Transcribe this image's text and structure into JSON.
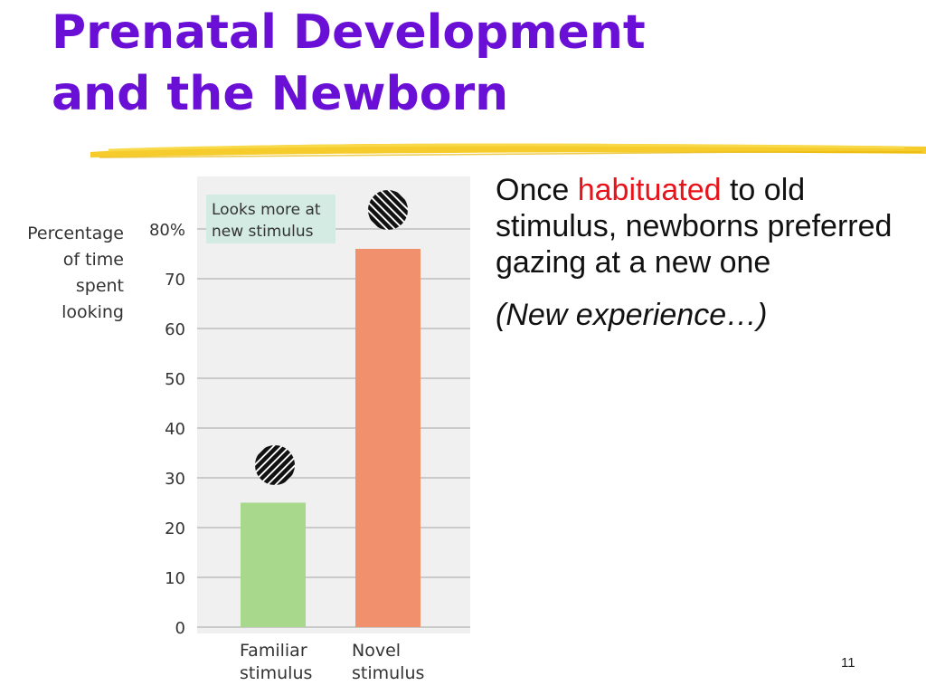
{
  "slide": {
    "title_line1": "Prenatal Development",
    "title_line2": "and the Newborn",
    "text_before": "Once ",
    "text_highlight": "habituated",
    "text_after": " to old stimulus, newborns preferred gazing at a new one",
    "note": "(New experience…)",
    "page_number": "11"
  },
  "colors": {
    "title": "#6a0fd6",
    "highlight": "#e8141b",
    "familiar_bar": "#a8d88b",
    "novel_bar": "#f0906c",
    "annotation_box": "#d4ebe3",
    "plot_background": "#f0f0f0",
    "accent_swoosh": "#f5c515"
  },
  "chart_data": {
    "type": "bar",
    "categories": [
      "Familiar\nstimulus",
      "Novel\nstimulus"
    ],
    "values": [
      25,
      76
    ],
    "ylabel": "Percentage\nof time\nspent\nlooking",
    "yticks": [
      "80%",
      "70",
      "60",
      "50",
      "40",
      "30",
      "20",
      "10",
      "0"
    ],
    "ylim": [
      0,
      80
    ],
    "grid": true,
    "annotation": "Looks more at\nnew stimulus",
    "bar_icons": [
      "striped-circle-icon",
      "striped-circle-icon"
    ]
  }
}
